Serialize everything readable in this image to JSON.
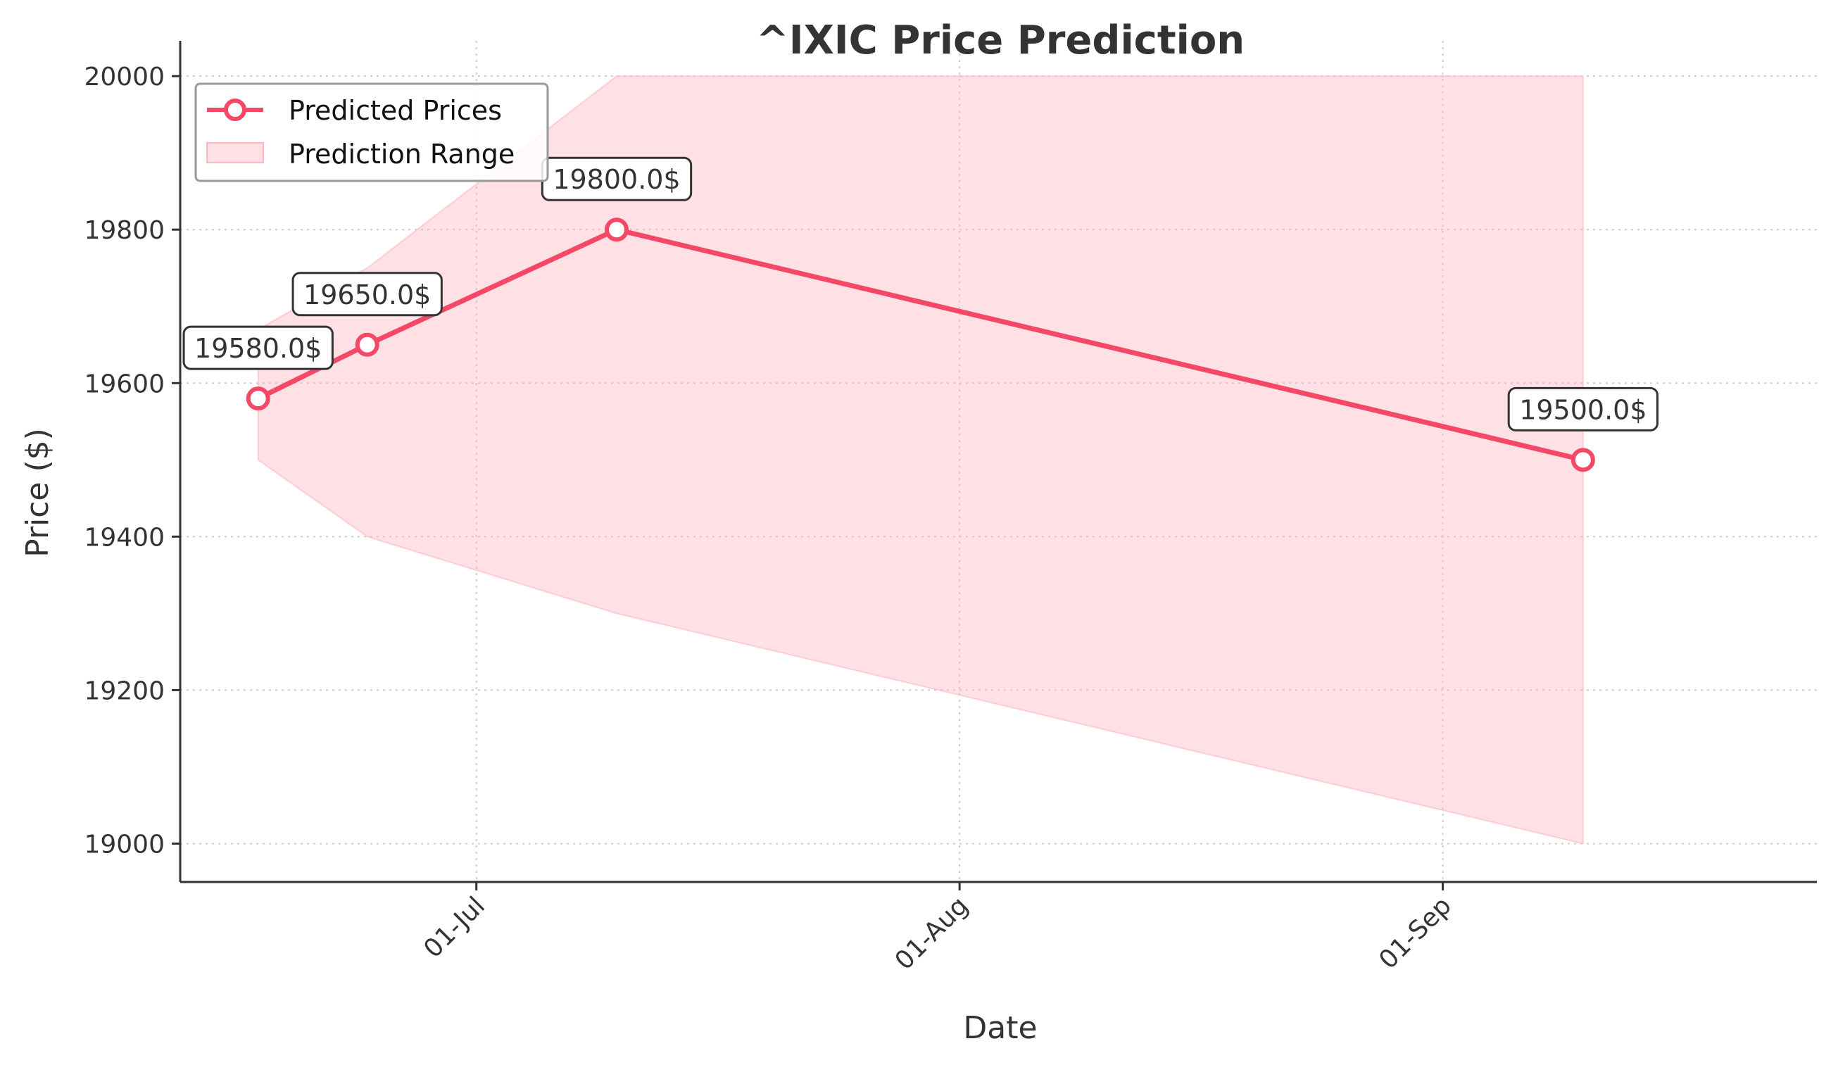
{
  "colors": {
    "line": "#f44866",
    "band": "#ffb6c1",
    "axis": "#333333",
    "grid": "#cccccc"
  },
  "chart_data": {
    "type": "line",
    "title": "^IXIC Price Prediction",
    "xlabel": "Date",
    "ylabel": "Price ($)",
    "x": [
      "2024-06-17",
      "2024-06-24",
      "2024-07-10",
      "2024-09-10"
    ],
    "series": [
      {
        "name": "Predicted Prices",
        "values": [
          19580.0,
          19650.0,
          19800.0,
          19500.0
        ],
        "markers": true
      }
    ],
    "range": {
      "name": "Prediction Range",
      "lower": [
        19500,
        19400,
        19300,
        19000
      ],
      "upper": [
        19670,
        19750,
        20000,
        20000
      ]
    },
    "annotations": [
      "19580.0$",
      "19650.0$",
      "19800.0$",
      "19500.0$"
    ],
    "x_ticks": [
      {
        "date": "2024-07-01",
        "label": "01-Jul"
      },
      {
        "date": "2024-08-01",
        "label": "01-Aug"
      },
      {
        "date": "2024-09-01",
        "label": "01-Sep"
      }
    ],
    "x_range": [
      "2024-06-12",
      "2024-09-25"
    ],
    "y_ticks": [
      19000,
      19200,
      19400,
      19600,
      19800,
      20000
    ],
    "ylim": [
      18950,
      20046
    ],
    "grid": true,
    "legend_position": "top-left"
  }
}
